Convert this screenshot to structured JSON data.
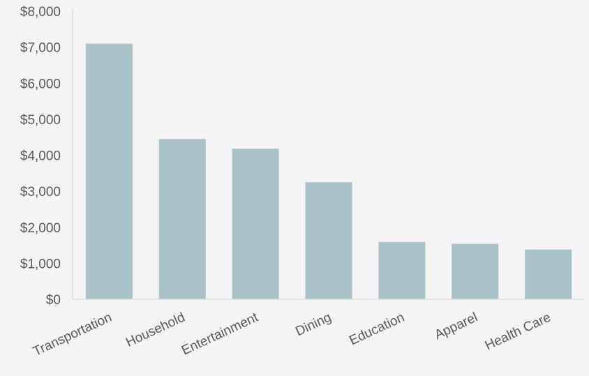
{
  "chart_data": {
    "type": "bar",
    "categories": [
      "Transportation",
      "Household",
      "Entertainment",
      "Dining",
      "Education",
      "Apparel",
      "Health Care"
    ],
    "values": [
      7100,
      4450,
      4180,
      3250,
      1590,
      1540,
      1380
    ],
    "title": "",
    "xlabel": "",
    "ylabel": "",
    "ylim": [
      0,
      8000
    ],
    "yticks": [
      "$0",
      "$1,000",
      "$2,000",
      "$3,000",
      "$4,000",
      "$5,000",
      "$6,000",
      "$7,000",
      "$8,000"
    ],
    "grid": false,
    "legend": "none",
    "bar_color": "#a9c3c8",
    "axis_color": "#d9d9d9",
    "text_color": "#595959",
    "background": "#f4f4f4"
  }
}
